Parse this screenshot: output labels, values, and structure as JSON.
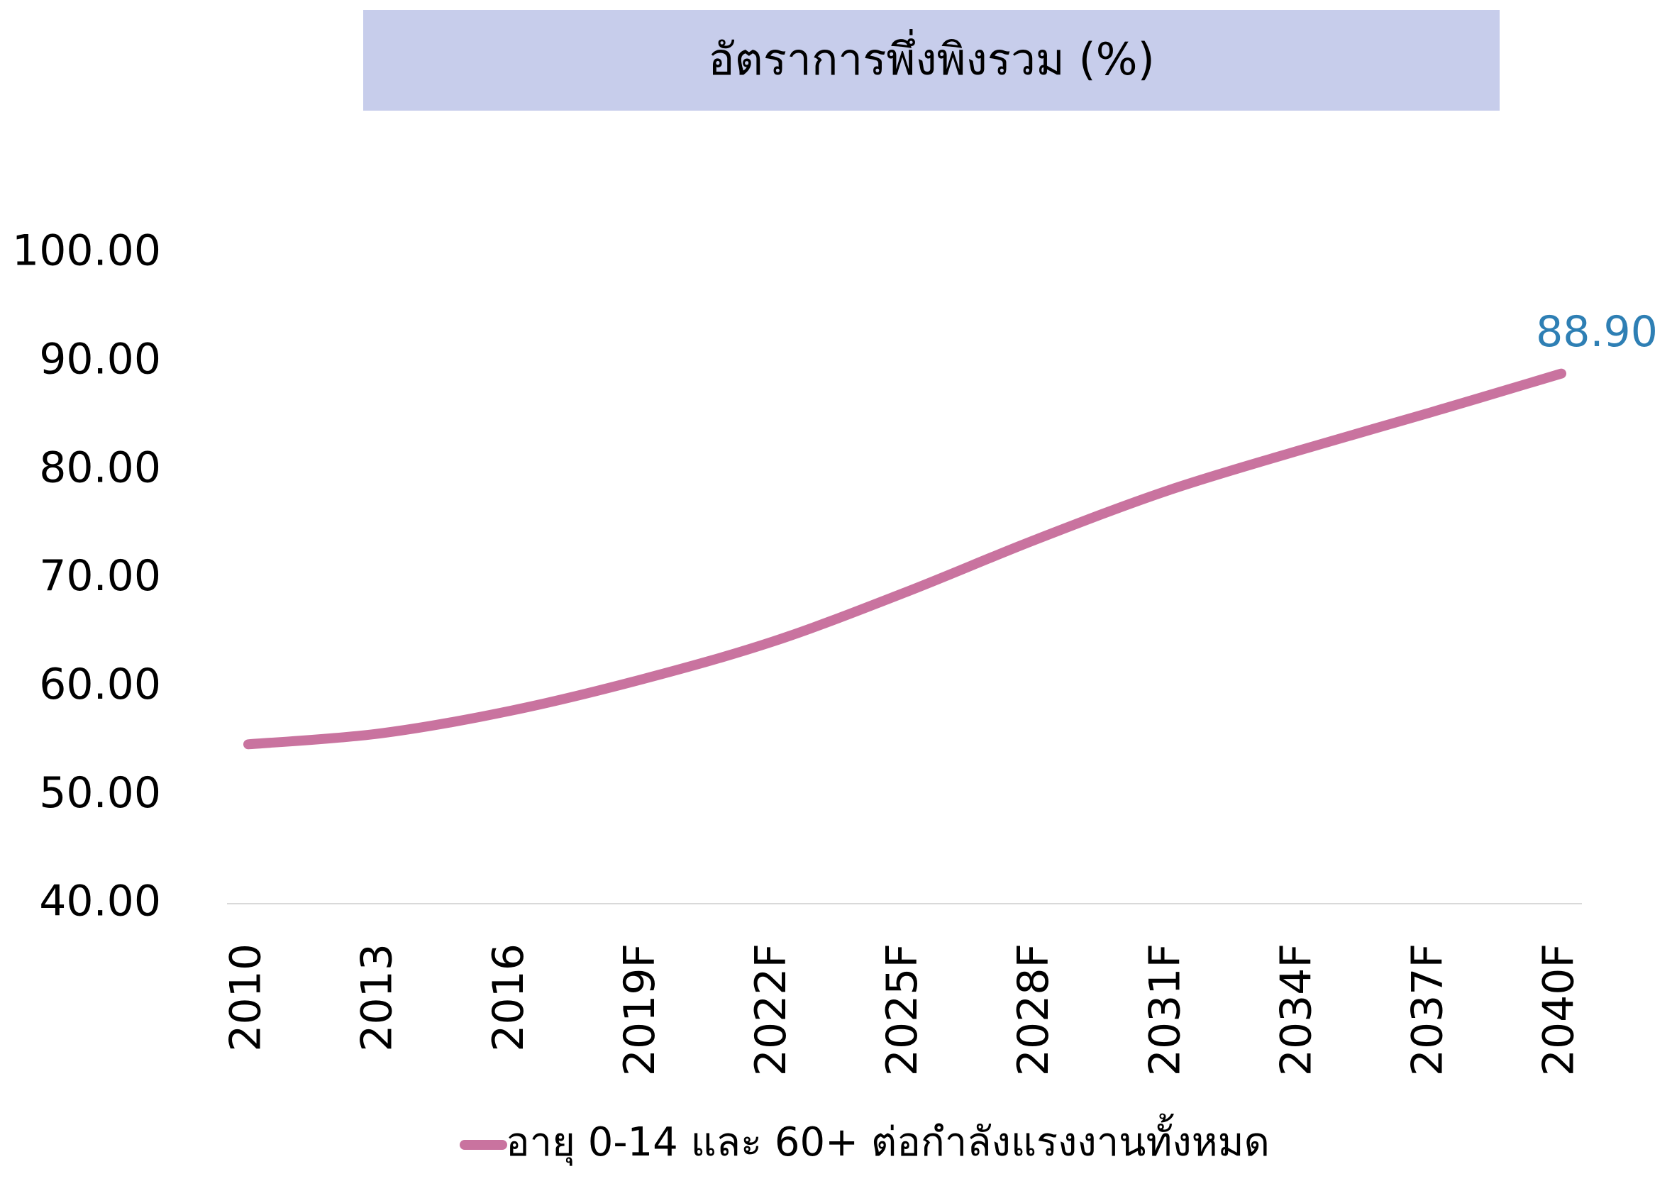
{
  "chart_data": {
    "type": "line",
    "title": "อัตราการพึ่งพิงรวม (%)",
    "categories": [
      "2010",
      "2013",
      "2016",
      "2019F",
      "2022F",
      "2025F",
      "2028F",
      "2031F",
      "2034F",
      "2037F",
      "2040F"
    ],
    "series": [
      {
        "name": "อายุ 0-14 และ 60+ ต่อกำลังแรงงานทั้งหมด",
        "color": "#c9739f",
        "values": [
          54.7,
          55.7,
          57.8,
          60.7,
          64.2,
          68.7,
          73.6,
          78.1,
          81.8,
          85.3,
          88.9
        ],
        "value_labels": [
          null,
          null,
          null,
          null,
          null,
          null,
          null,
          null,
          null,
          null,
          "88.90"
        ]
      }
    ],
    "ylim": [
      40,
      100
    ],
    "yticks": [
      {
        "value": 40,
        "label": "40.00"
      },
      {
        "value": 50,
        "label": "50.00"
      },
      {
        "value": 60,
        "label": "60.00"
      },
      {
        "value": 70,
        "label": "70.00"
      },
      {
        "value": 80,
        "label": "80.00"
      },
      {
        "value": 90,
        "label": "90.00"
      },
      {
        "value": 100,
        "label": "100.00"
      }
    ],
    "grid": false,
    "legend": "bottom",
    "title_background": "#c7cdeb",
    "value_label_color": "#2e7fb4"
  }
}
